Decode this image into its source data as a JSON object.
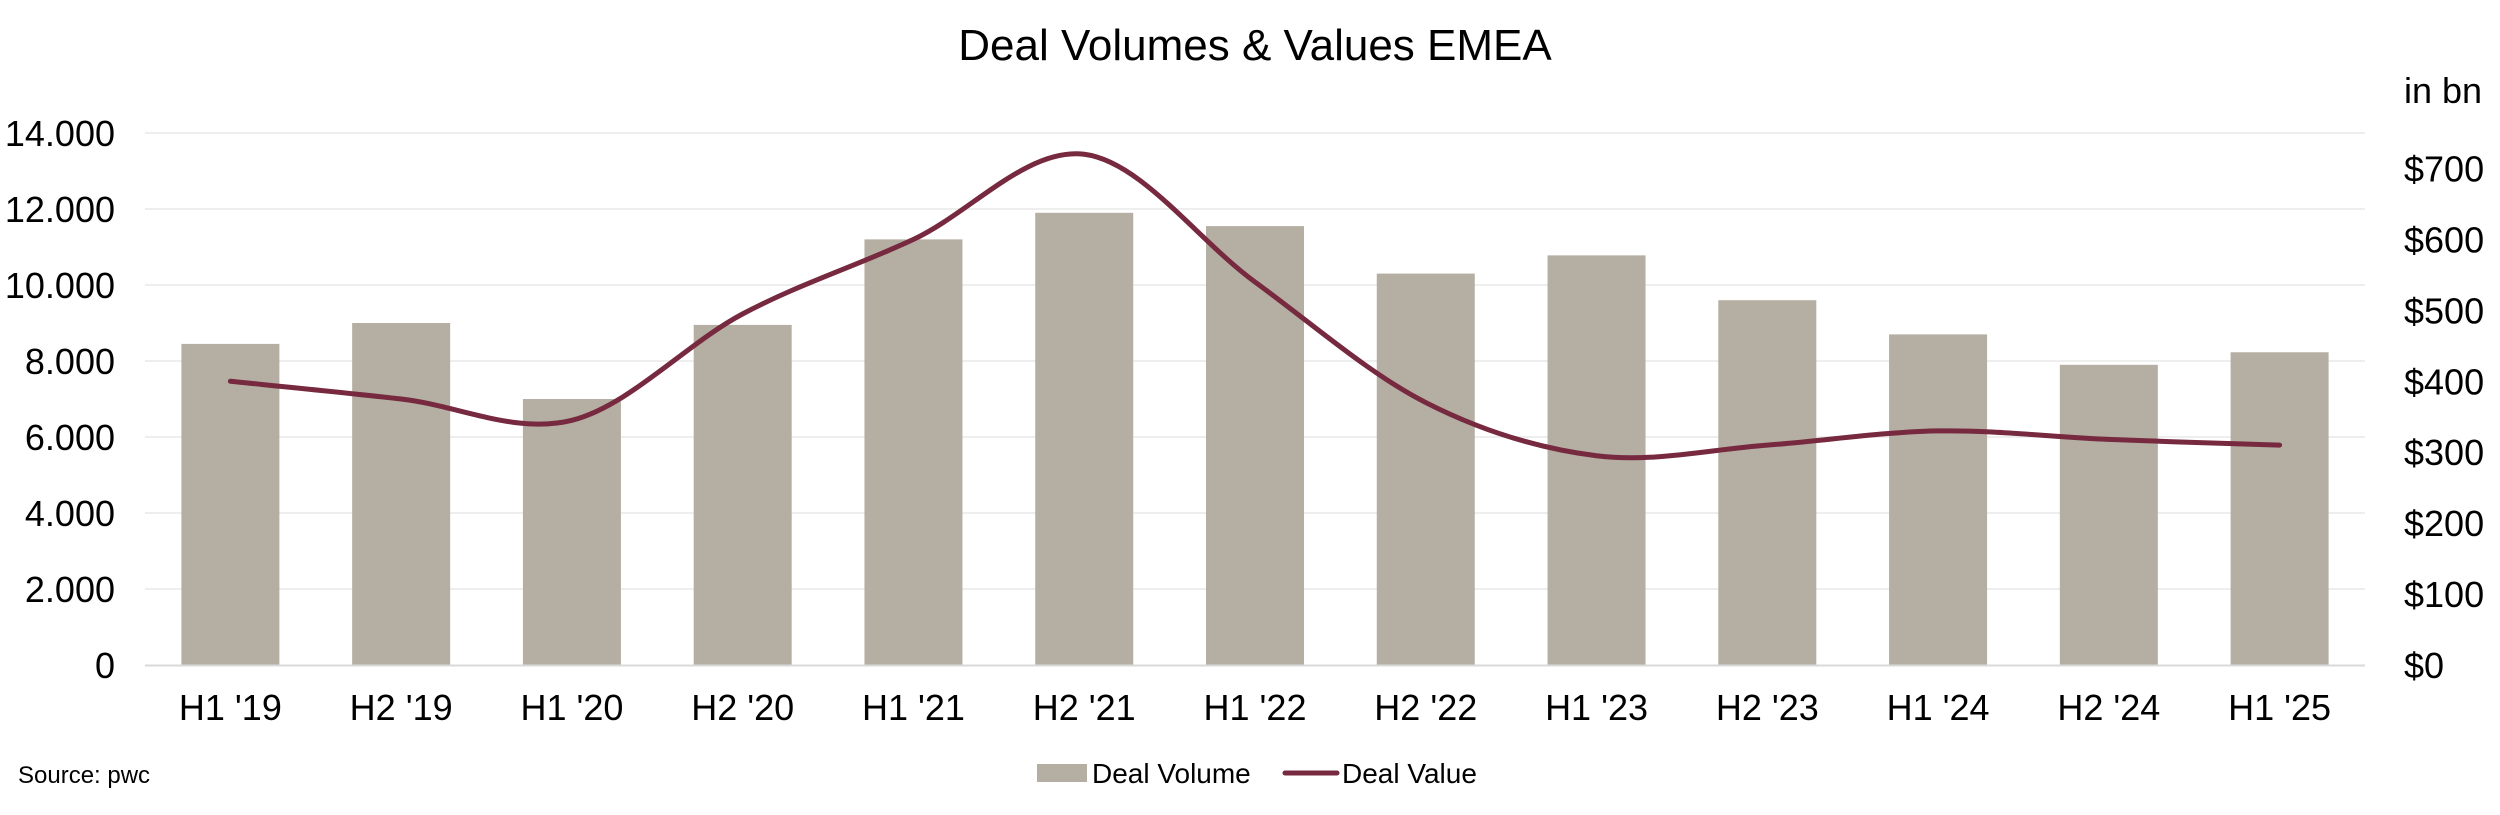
{
  "chart_data": {
    "type": "bar",
    "title": "Deal Volumes & Values EMEA",
    "categories": [
      "H1 '19",
      "H2 '19",
      "H1 '20",
      "H2 '20",
      "H1 '21",
      "H2 '21",
      "H1 '22",
      "H2 '22",
      "H1 '23",
      "H2 '23",
      "H1 '24",
      "H2 '24",
      "H1 '25"
    ],
    "series": [
      {
        "name": "Deal Volume",
        "type": "bar",
        "axis": "left",
        "color": "#b5aea2",
        "values": [
          8450,
          9000,
          7000,
          8950,
          11200,
          11900,
          11550,
          10300,
          10780,
          9600,
          8700,
          7900,
          8230
        ]
      },
      {
        "name": "Deal Value",
        "type": "line",
        "axis": "right",
        "color": "#76293f",
        "values": [
          400,
          375,
          345,
          495,
          600,
          720,
          540,
          370,
          295,
          310,
          330,
          318,
          310
        ]
      }
    ],
    "y_left": {
      "ylim": [
        0,
        14000
      ],
      "ticks": [
        0,
        2000,
        4000,
        6000,
        8000,
        10000,
        12000,
        14000
      ],
      "tick_labels": [
        "0",
        "2.000",
        "4.000",
        "6.000",
        "8.000",
        "10.000",
        "12.000",
        "14.000"
      ]
    },
    "y_right": {
      "ylim": [
        0,
        750
      ],
      "ticks": [
        0,
        100,
        200,
        300,
        400,
        500,
        600,
        700
      ],
      "tick_labels": [
        "$0",
        "$100",
        "$200",
        "$300",
        "$400",
        "$500",
        "$600",
        "$700"
      ],
      "unit_label": "in bn"
    },
    "legend": {
      "position": "bottom-center",
      "entries": [
        "Deal Volume",
        "Deal Value"
      ]
    },
    "source": "Source: pwc",
    "grid": true,
    "gridline_color": "#eeeeee",
    "axis_color": "#d9d9d9"
  }
}
